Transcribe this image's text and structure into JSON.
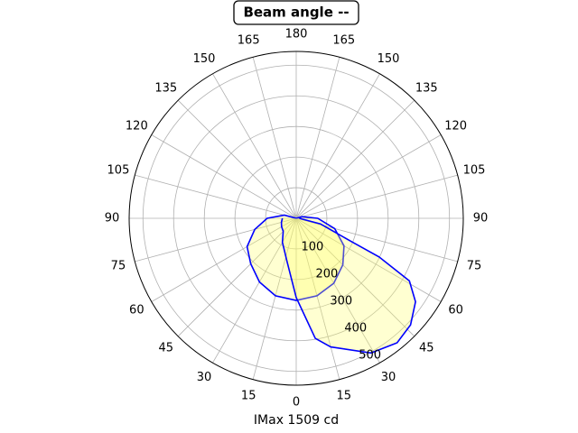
{
  "chart_data": {
    "type": "polar",
    "title": "Beam angle --",
    "xlabel": "IMax 1509 cd",
    "rlim": [
      0,
      545
    ],
    "rticks": [
      100,
      200,
      300,
      400,
      500
    ],
    "thetaticks": [
      0,
      15,
      30,
      45,
      60,
      75,
      90,
      105,
      120,
      135,
      150,
      165,
      180,
      {
        "value": 195,
        "label": "165"
      },
      {
        "value": 210,
        "label": "150"
      },
      {
        "value": 225,
        "label": "135"
      },
      {
        "value": 240,
        "label": "120"
      },
      {
        "value": 255,
        "label": "105"
      },
      {
        "value": 270,
        "label": "90"
      },
      {
        "value": 285,
        "label": "75"
      },
      {
        "value": 300,
        "label": "60"
      },
      {
        "value": 315,
        "label": "45"
      },
      {
        "value": 330,
        "label": "30"
      },
      {
        "value": 345,
        "label": "15"
      }
    ],
    "grid": true,
    "fill_color": "#ffff66",
    "series": [
      {
        "color": "#0000ff",
        "theta": [
          240,
          255,
          270,
          285,
          300,
          315,
          330,
          345,
          0,
          15,
          30,
          45,
          60,
          75,
          90,
          105,
          120
        ],
        "r": [
          0,
          40,
          95,
          140,
          185,
          210,
          240,
          262,
          268,
          262,
          245,
          215,
          180,
          130,
          70,
          20,
          0
        ]
      },
      {
        "color": "#0000ff",
        "theta": [
          270,
          285,
          300,
          315,
          330,
          348,
          0,
          9,
          15,
          29,
          39,
          47,
          55,
          61,
          65,
          67,
          77,
          90
        ],
        "r": [
          45,
          50,
          55,
          60,
          90,
          144,
          259,
          397,
          435,
          503,
          523,
          510,
          475,
          422,
          298,
          197,
          81,
          10
        ]
      }
    ]
  }
}
